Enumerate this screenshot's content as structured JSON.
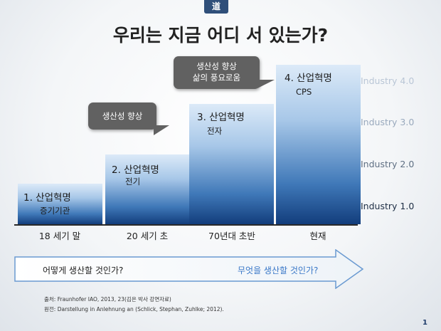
{
  "badge": "道",
  "title": "우리는 지금 어디 서 있는가?",
  "bars": [
    {
      "label": "1. 산업혁명",
      "sub": "증기기관"
    },
    {
      "label": "2. 산업혁명",
      "sub": "전기"
    },
    {
      "label": "3. 산업혁명",
      "sub": "전자"
    },
    {
      "label": "4. 산업혁명",
      "sub": "CPS"
    }
  ],
  "eras": [
    "18 세기 말",
    "20 세기 초",
    "70년대 초반",
    "현재"
  ],
  "industry_levels": [
    {
      "label": "Industry 4.0",
      "color": "#b9c6d6"
    },
    {
      "label": "Industry 3.0",
      "color": "#99a9bd"
    },
    {
      "label": "Industry 2.0",
      "color": "#5f6f83"
    },
    {
      "label": "Industry 1.0",
      "color": "#1d2d44"
    }
  ],
  "callouts": {
    "first": "생산성 향상",
    "second_line1": "생산성 향상",
    "second_line2": "삶의 풍요로움"
  },
  "arrow": {
    "left_text": "어떻게 생산할 것인가?",
    "right_text": "무엇을 생산할 것인가?",
    "right_color": "#3a78c8"
  },
  "footnotes": {
    "line1": "출처: Fraunhofer IAO, 2013, 23(김은 박사 강연자료)",
    "line2": "원전: Darstellung in Anlehnung an (Schlick, Stephan, Zuhlke; 2012)."
  },
  "page_number": "1"
}
